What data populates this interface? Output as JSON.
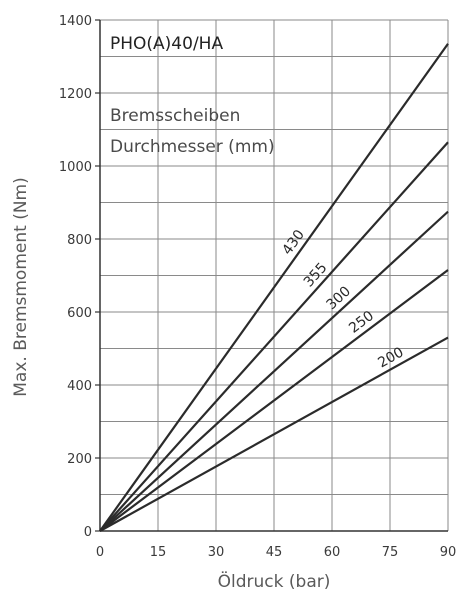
{
  "chart_data": {
    "type": "line",
    "title": "PHO(A)40/HA",
    "xlabel": "Öldruck (bar)",
    "ylabel": "Max. Bremsmoment (Nm)",
    "annotation_lines": [
      "Bremsscheiben",
      "Durchmesser (mm)"
    ],
    "xlim": [
      0,
      90
    ],
    "ylim": [
      0,
      1400
    ],
    "x_ticks": [
      "0",
      "15",
      "30",
      "45",
      "60",
      "75",
      "90"
    ],
    "y_ticks": [
      "0",
      "200",
      "400",
      "600",
      "800",
      "1000",
      "1200",
      "1400"
    ],
    "grid": true,
    "series": [
      {
        "name": "430",
        "points": [
          [
            0,
            0
          ],
          [
            90,
            1335
          ]
        ]
      },
      {
        "name": "355",
        "points": [
          [
            0,
            0
          ],
          [
            90,
            1065
          ]
        ]
      },
      {
        "name": "300",
        "points": [
          [
            0,
            0
          ],
          [
            90,
            875
          ]
        ]
      },
      {
        "name": "250",
        "points": [
          [
            0,
            0
          ],
          [
            90,
            715
          ]
        ]
      },
      {
        "name": "200",
        "points": [
          [
            0,
            0
          ],
          [
            90,
            530
          ]
        ]
      }
    ],
    "line_color": "#2b2b2b",
    "grid_color": "#8a8a8a"
  }
}
